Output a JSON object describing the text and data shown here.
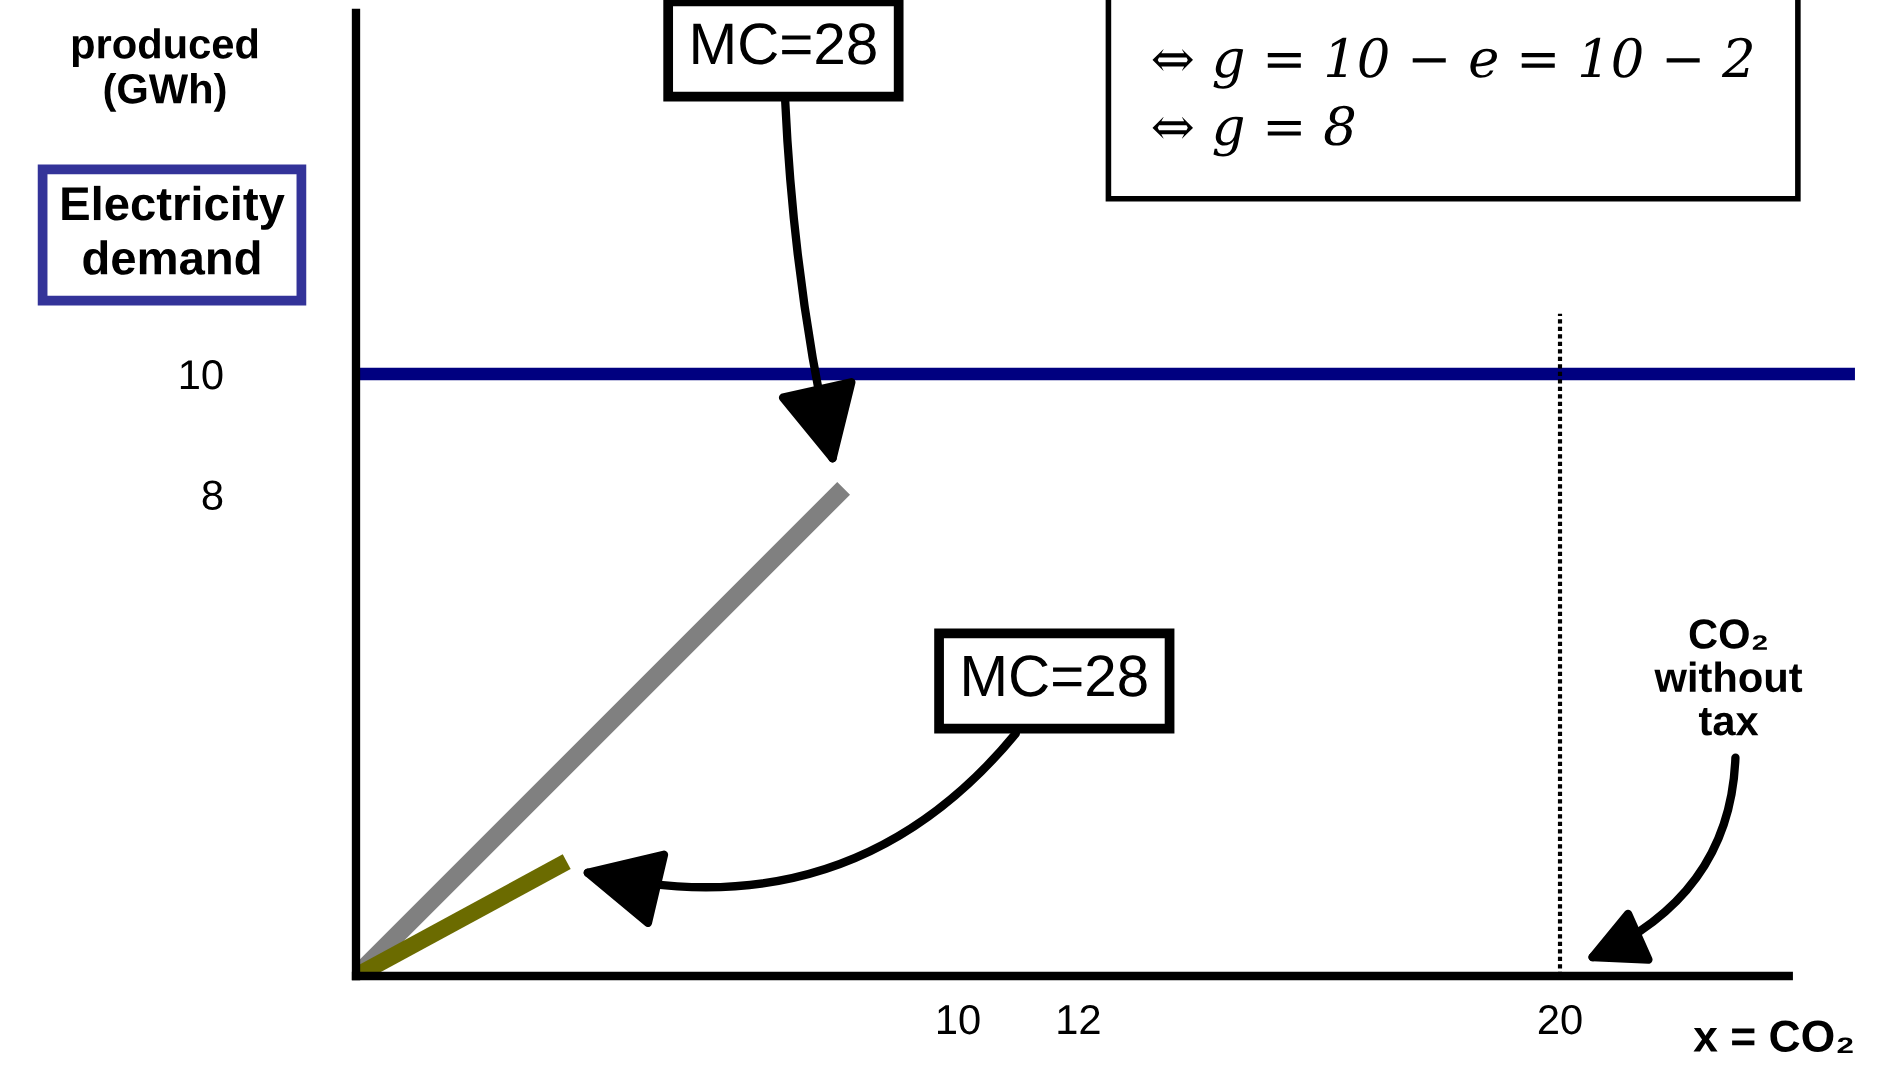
{
  "chart_data": {
    "type": "line",
    "xlabel": "x = CO₂",
    "ylabel": "produced\n(GWh)",
    "xlim": [
      0,
      24.9
    ],
    "ylim": [
      0,
      16
    ],
    "xticks": [
      10,
      12,
      20
    ],
    "yticks": [
      8,
      10
    ],
    "grid": false,
    "series": [
      {
        "color": "#000080",
        "x": [
          0,
          24.9
        ],
        "values": [
          10,
          10
        ]
      },
      {
        "color": "#808080",
        "x": [
          0,
          8.1
        ],
        "values": [
          0,
          8.1
        ]
      },
      {
        "color": "#6b6b00",
        "x": [
          0,
          3.5
        ],
        "values": [
          0,
          1.9
        ]
      },
      {
        "color": "#000000",
        "x": [
          20,
          20
        ],
        "values": [
          0,
          11
        ],
        "line_style": "dotted"
      }
    ],
    "annotations": [
      "Electricity\ndemand",
      "MC=28",
      "MC=28",
      "CO₂\nwithout\ntax",
      "⇔ g = 10 − e = 10 − 2\n⇔ g = 8"
    ]
  }
}
